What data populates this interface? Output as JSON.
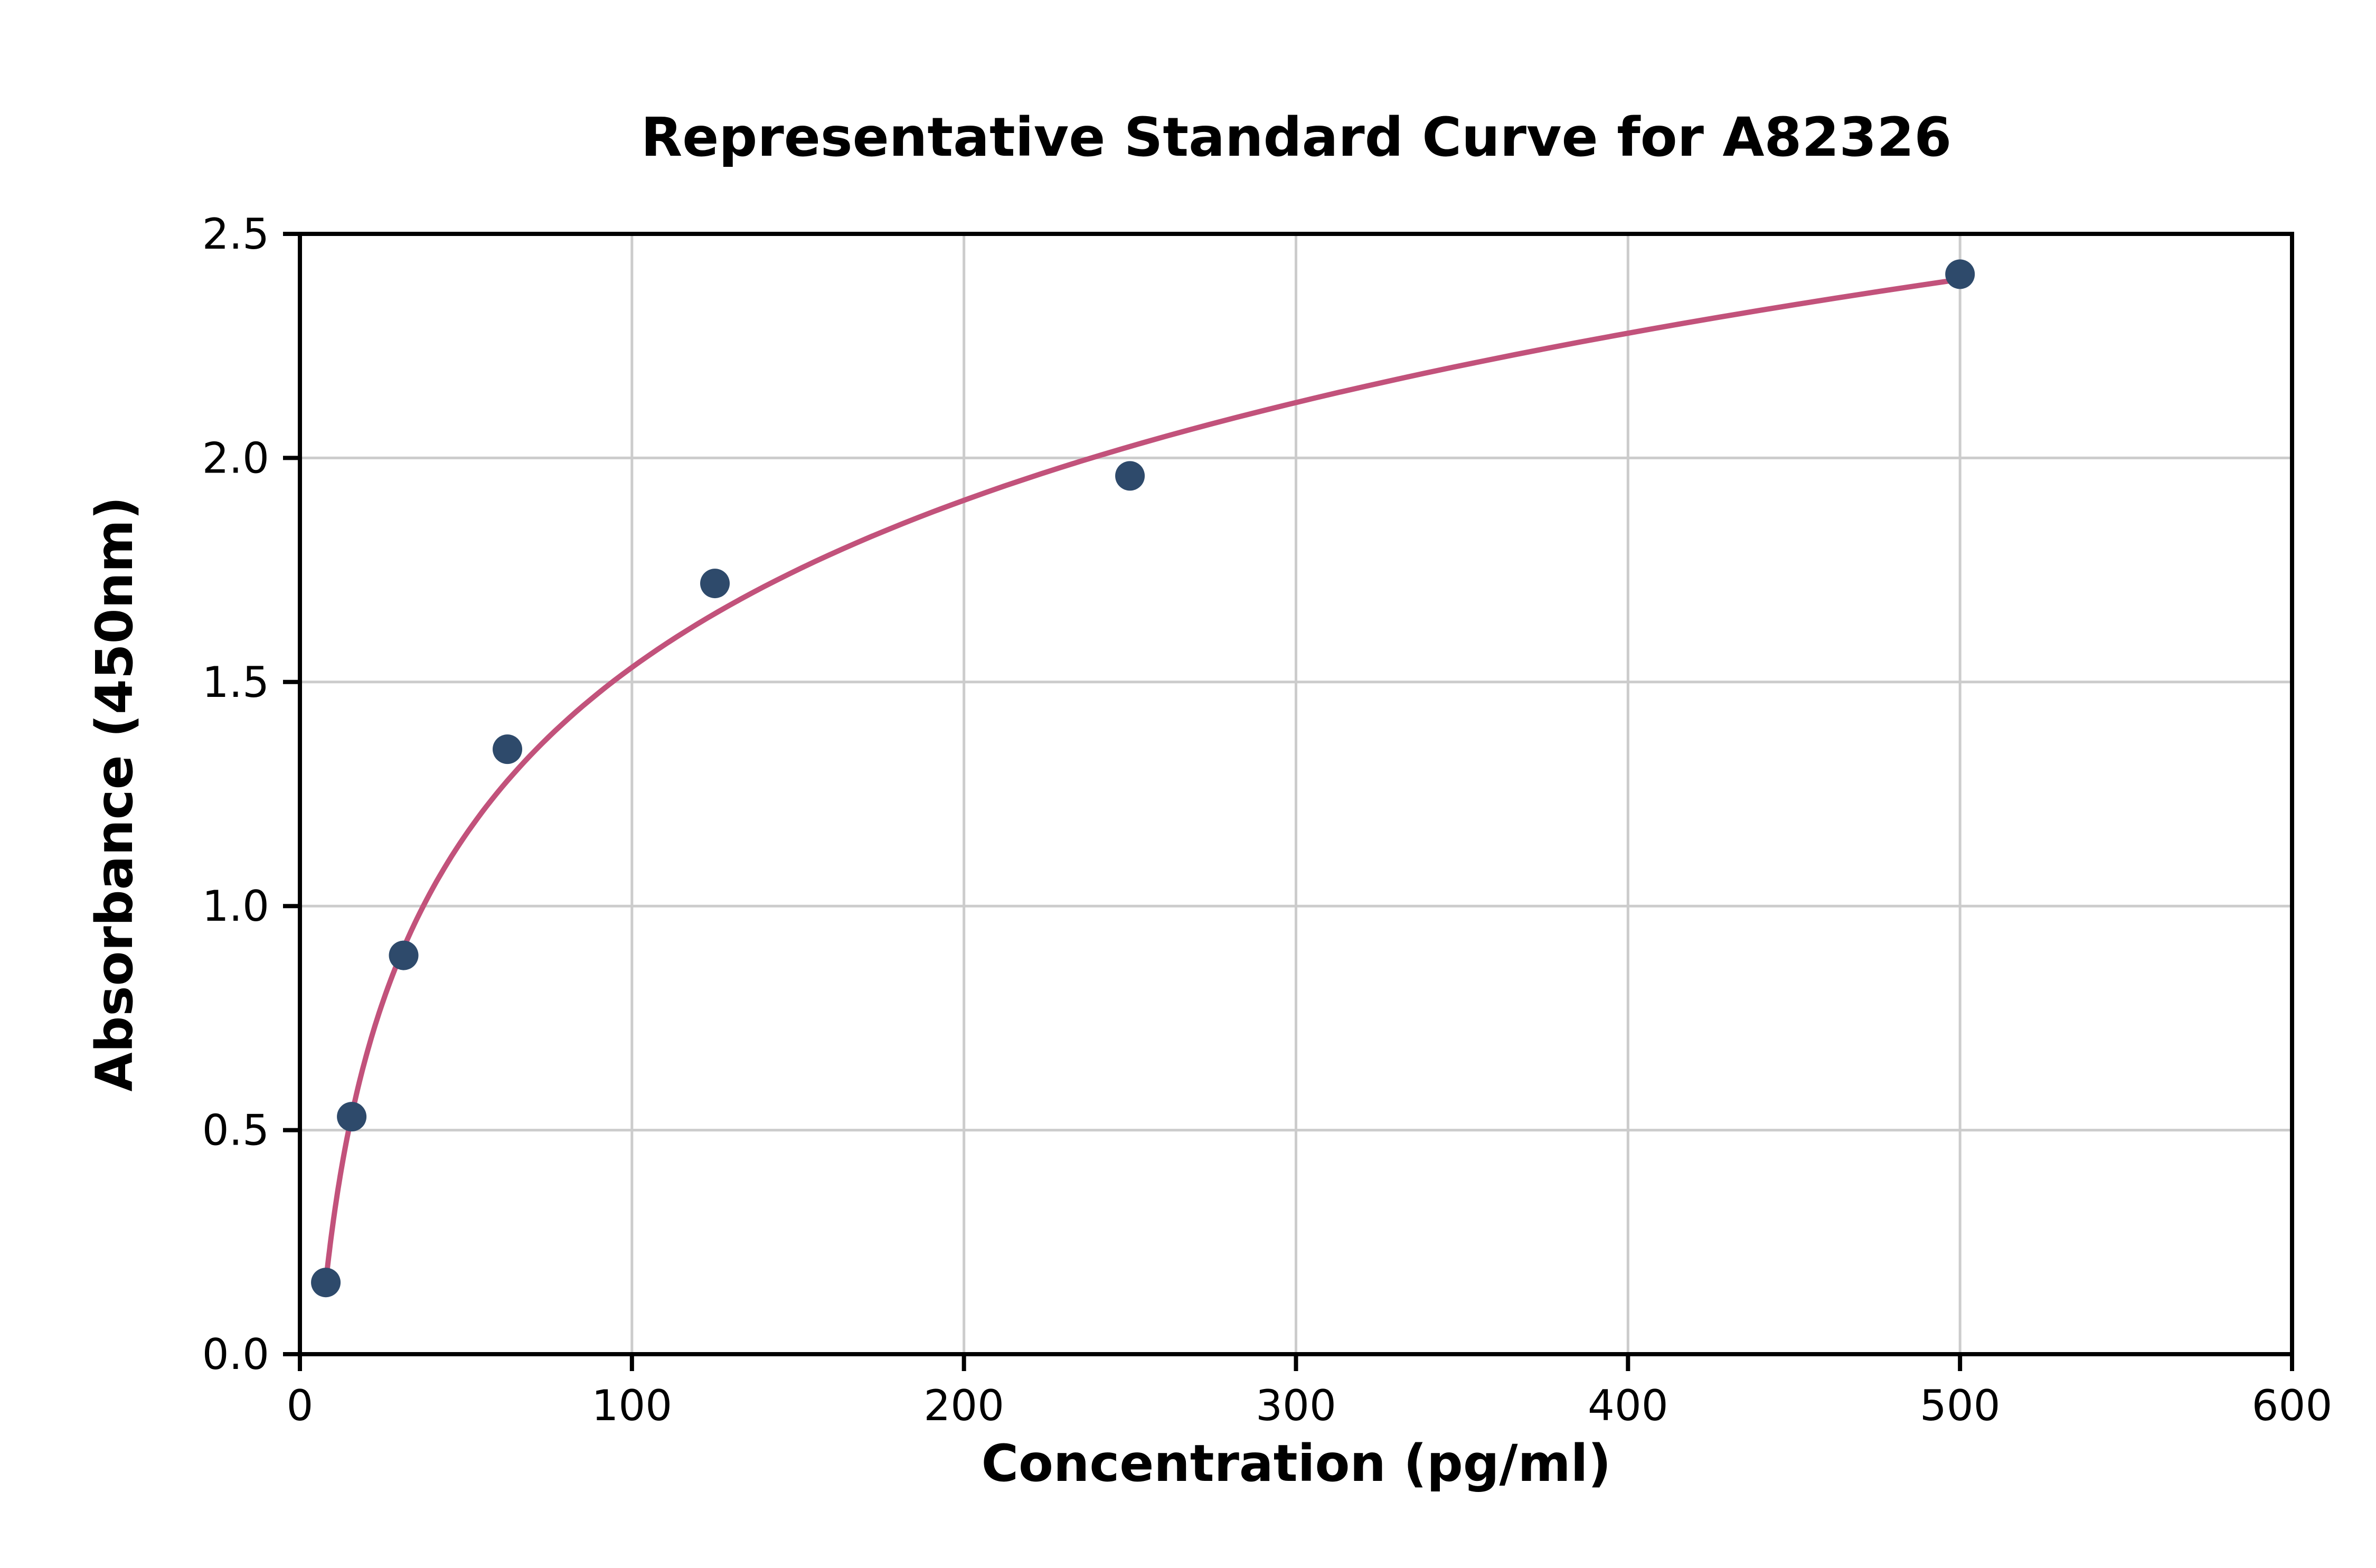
{
  "chart_data": {
    "type": "scatter",
    "title": "Representative Standard Curve for A82326",
    "xlabel": "Concentration (pg/ml)",
    "ylabel": "Absorbance (450nm)",
    "xlim": [
      0,
      600
    ],
    "ylim": [
      0,
      2.5
    ],
    "x_ticks": [
      0,
      100,
      200,
      300,
      400,
      500,
      600
    ],
    "y_ticks": [
      0,
      0.5,
      1,
      1.5,
      2,
      2.5
    ],
    "x_tick_labels": [
      "0",
      "100",
      "200",
      "300",
      "400",
      "500",
      "600"
    ],
    "y_tick_labels": [
      "0.0",
      "0.5",
      "1.0",
      "1.5",
      "2.0",
      "2.5"
    ],
    "grid": true,
    "legend": "none",
    "points": [
      {
        "x": 7.8,
        "y": 0.16
      },
      {
        "x": 15.6,
        "y": 0.53
      },
      {
        "x": 31.25,
        "y": 0.89
      },
      {
        "x": 62.5,
        "y": 1.35
      },
      {
        "x": 125,
        "y": 1.72
      },
      {
        "x": 250,
        "y": 1.96
      },
      {
        "x": 500,
        "y": 2.41
      }
    ],
    "fit_curve": {
      "type": "logarithmic",
      "a": 0.538,
      "b": -0.945,
      "x_start": 7.8,
      "x_end": 500
    },
    "colors": {
      "points": "#2e4a6b",
      "curve": "#c2527b",
      "grid": "#cccccc",
      "axis": "#000000",
      "background": "#ffffff"
    }
  }
}
